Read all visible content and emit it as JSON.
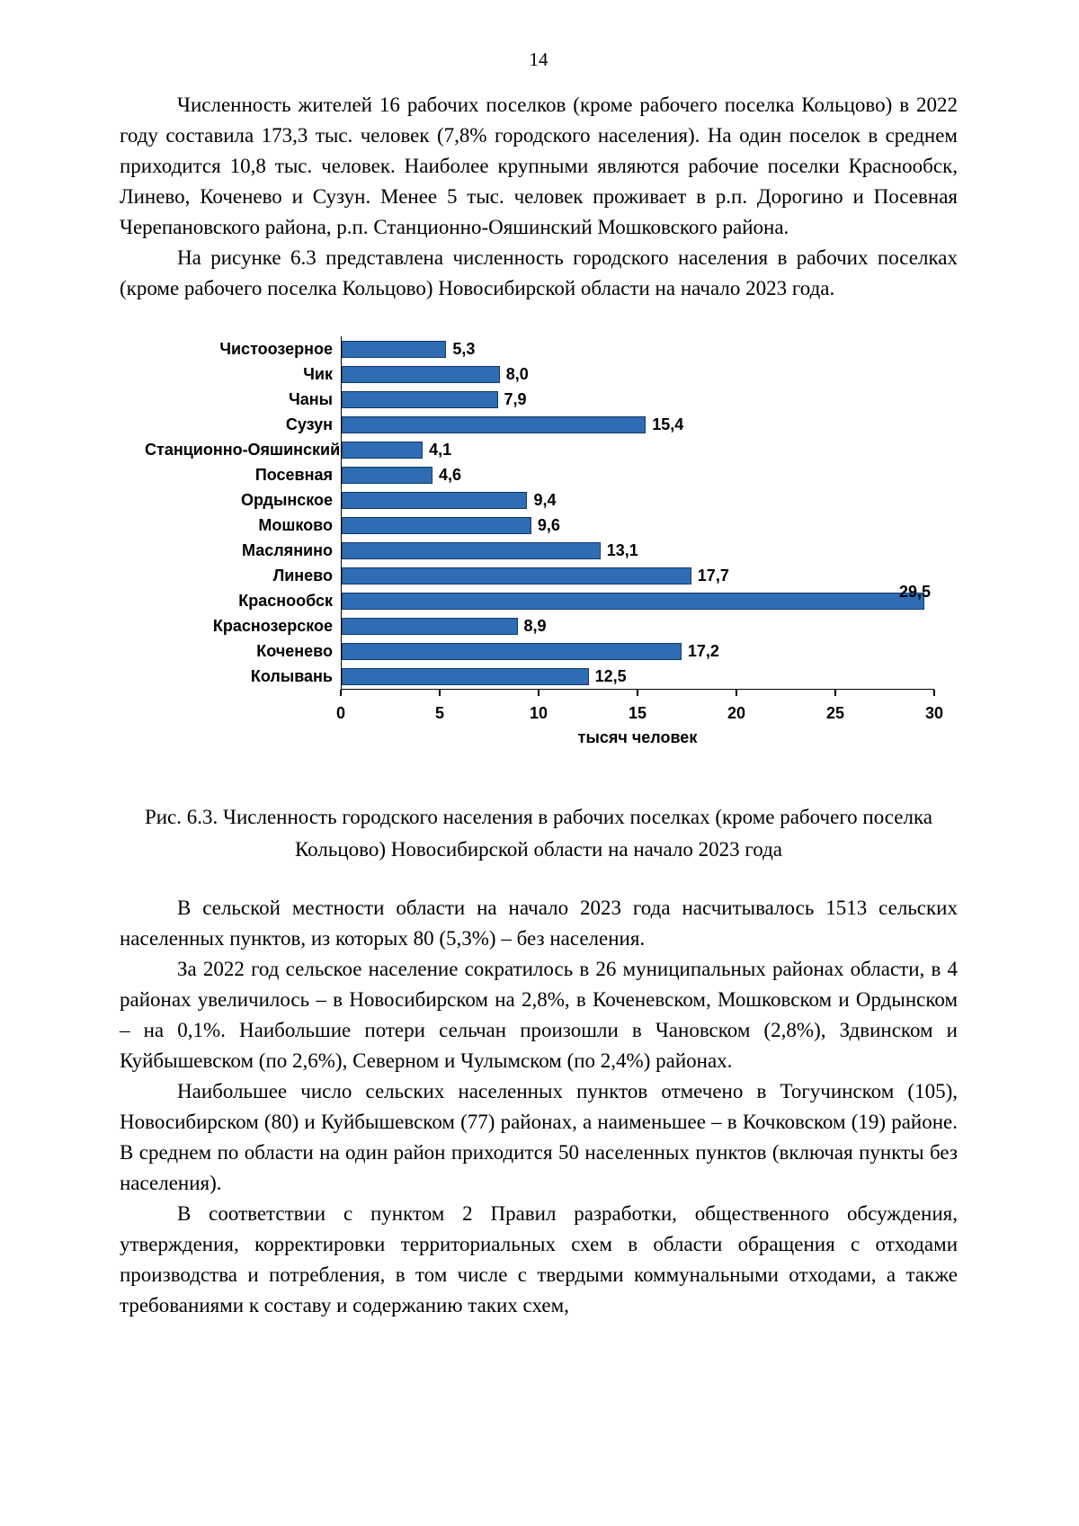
{
  "page": {
    "number": "14"
  },
  "body": {
    "paragraphs_top": [
      "Численность жителей 16 рабочих поселков (кроме рабочего поселка Кольцово) в 2022 году составила 173,3 тыс. человек (7,8% городского населения). На один поселок в среднем приходится 10,8 тыс. человек. Наиболее крупными являются рабочие поселки Краснообск, Линево, Коченево и Сузун. Менее 5 тыс. человек проживает в р.п. Дорогино и Посевная Черепановского района, р.п. Станционно-Ояшинский Мошковского района.",
      "На рисунке 6.3 представлена численность городского населения в рабочих поселках (кроме рабочего поселка Кольцово) Новосибирской области на начало 2023 года."
    ],
    "paragraphs_bottom": [
      "В сельской местности области на начало 2023 года насчитывалось 1513 сельских населенных пунктов, из которых 80 (5,3%) – без населения.",
      "За 2022 год сельское население сократилось в 26 муниципальных районах области, в 4 районах увеличилось – в Новосибирском на 2,8%, в Коченевском, Мошковском и Ордынском – на 0,1%. Наибольшие потери сельчан произошли в Чановском (2,8%), Здвинском и Куйбышевском (по 2,6%), Северном и Чулымском (по 2,4%) районах.",
      "Наибольшее число сельских населенных пунктов отмечено в Тогучинском (105), Новосибирском (80) и Куйбышевском (77) районах, а наименьшее – в Кочковском (19) районе. В среднем по области на один район приходится 50 населенных пунктов (включая пункты без населения).",
      "В соответствии с пунктом 2 Правил разработки, общественного обсуждения, утверждения, корректировки территориальных схем в области обращения с отходами производства и потребления, в том числе с твердыми коммунальными отходами, а также требованиями к составу и содержанию таких схем,"
    ]
  },
  "figure": {
    "caption": "Рис. 6.3. Численность городского населения в рабочих поселках (кроме рабочего поселка Кольцово) Новосибирской области на начало 2023 года"
  },
  "chart_data": {
    "type": "bar",
    "orientation": "horizontal",
    "categories": [
      "Чистоозерное",
      "Чик",
      "Чаны",
      "Сузун",
      "Станционно-Ояшинский",
      "Посевная",
      "Ордынское",
      "Мошково",
      "Маслянино",
      "Линево",
      "Краснообск",
      "Краснозерское",
      "Коченево",
      "Колывань"
    ],
    "values": [
      5.3,
      8.0,
      7.9,
      15.4,
      4.1,
      4.6,
      9.4,
      9.6,
      13.1,
      17.7,
      29.5,
      8.9,
      17.2,
      12.5
    ],
    "value_labels": [
      "5,3",
      "8,0",
      "7,9",
      "15,4",
      "4,1",
      "4,6",
      "9,4",
      "9,6",
      "13,1",
      "17,7",
      "29,5",
      "8,9",
      "17,2",
      "12,5"
    ],
    "title": "",
    "xlabel": "тысяч человек",
    "ylabel": "",
    "xlim": [
      0,
      30
    ],
    "xticks": [
      0,
      5,
      10,
      15,
      20,
      25,
      30
    ],
    "grid": false,
    "legend": false,
    "bar_color": "#2e6db4",
    "bar_border": "#123a66"
  }
}
